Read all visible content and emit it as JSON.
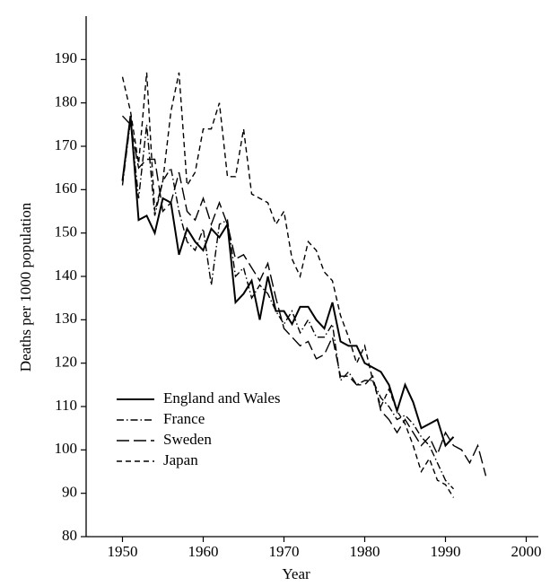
{
  "chart_data": {
    "type": "line",
    "xlabel": "Year",
    "ylabel": "Deaths per 1000 population",
    "x": [
      1950,
      1951,
      1952,
      1953,
      1954,
      1955,
      1956,
      1957,
      1958,
      1959,
      1960,
      1961,
      1962,
      1963,
      1964,
      1965,
      1966,
      1967,
      1968,
      1969,
      1970,
      1971,
      1972,
      1973,
      1974,
      1975,
      1976,
      1977,
      1978,
      1979,
      1980,
      1981,
      1982,
      1983,
      1984,
      1985,
      1986,
      1987,
      1988,
      1989,
      1990,
      1991,
      1992,
      1993,
      1994,
      1995
    ],
    "series": [
      {
        "name": "England and Wales",
        "color": "#000000",
        "dash": "solid",
        "values": [
          162,
          177,
          153,
          154,
          150,
          158,
          157,
          145,
          151,
          148,
          146,
          151,
          149,
          152,
          134,
          136,
          139,
          130,
          140,
          132,
          132,
          129,
          133,
          133,
          130,
          128,
          134,
          125,
          124,
          124,
          120,
          119,
          118,
          115,
          109,
          115,
          111,
          105,
          106,
          107,
          101,
          103,
          null,
          null,
          null,
          null
        ]
      },
      {
        "name": "France",
        "color": "#000000",
        "dash": "dashdot",
        "values": [
          161,
          176,
          158,
          175,
          154,
          162,
          165,
          155,
          148,
          146,
          151,
          138,
          152,
          153,
          140,
          142,
          135,
          138,
          136,
          132,
          129,
          132,
          127,
          130,
          126,
          126,
          129,
          116,
          118,
          115,
          116,
          116,
          112,
          110,
          107,
          108,
          106,
          103,
          101,
          97,
          93,
          91,
          null,
          null,
          null,
          null
        ]
      },
      {
        "name": "Sweden",
        "color": "#000000",
        "dash": "longdash",
        "values": [
          177,
          175,
          165,
          167,
          167,
          155,
          157,
          164,
          155,
          153,
          158,
          152,
          157,
          152,
          144,
          145,
          142,
          139,
          143,
          135,
          128,
          126,
          124,
          125,
          121,
          122,
          126,
          117,
          117,
          115,
          115,
          117,
          109,
          107,
          104,
          107,
          104,
          101,
          103,
          99,
          104,
          101,
          100,
          97,
          101,
          94
        ]
      },
      {
        "name": "Japan",
        "color": "#000000",
        "dash": "dash",
        "values": [
          186,
          178,
          166,
          187,
          155,
          162,
          178,
          187,
          161,
          164,
          174,
          174,
          180,
          163,
          163,
          174,
          159,
          158,
          157,
          152,
          155,
          144,
          140,
          148,
          146,
          141,
          139,
          131,
          126,
          120,
          124,
          116,
          110,
          114,
          109,
          106,
          101,
          95,
          98,
          93,
          92,
          89,
          null,
          null,
          null,
          null
        ]
      }
    ],
    "xlim": [
      1945.5,
      2001.5
    ],
    "xticks": [
      1950,
      1960,
      1970,
      1980,
      1990,
      2000
    ],
    "ylim": [
      80,
      200
    ],
    "yticks": [
      80,
      90,
      100,
      110,
      120,
      130,
      140,
      150,
      160,
      170,
      180,
      190
    ],
    "legend": "lower left"
  }
}
